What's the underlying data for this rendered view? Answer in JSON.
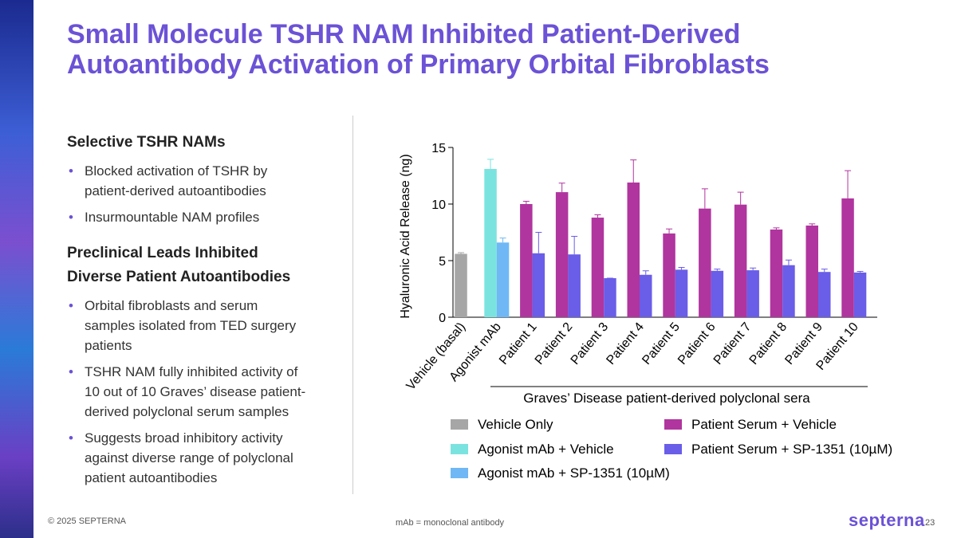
{
  "slide": {
    "title_lines": [
      "Small Molecule TSHR NAM Inhibited Patient-Derived",
      "Autoantibody Activation of Primary Orbital Fibroblasts"
    ],
    "sections": [
      {
        "heading": "Selective TSHR NAMs",
        "bullets": [
          "Blocked activation of TSHR by patient-derived autoantibodies",
          "Insurmountable NAM profiles"
        ]
      },
      {
        "heading": "Preclinical Leads Inhibited Diverse Patient Autoantibodies",
        "bullets": [
          "Orbital fibroblasts and serum samples isolated from TED surgery patients",
          "TSHR NAM fully inhibited activity of 10 out of 10 Graves’ disease patient-derived polyclonal serum samples",
          "Suggests broad inhibitory activity against diverse range of polyclonal patient autoantibodies"
        ]
      }
    ],
    "copyright": "© 2025 SEPTERNA",
    "footnote": "mAb = monoclonal antibody",
    "logo": "septerna",
    "page_number": "23"
  },
  "chart_data": {
    "type": "bar",
    "y_label": "Hyaluronic Acid Release (ng)",
    "group_label": "Graves’ Disease patient-derived polyclonal sera",
    "categories": [
      "Vehicle (basal)",
      "Agonist mAb",
      "Patient 1",
      "Patient 2",
      "Patient 3",
      "Patient 4",
      "Patient 5",
      "Patient 6",
      "Patient 7",
      "Patient 8",
      "Patient 9",
      "Patient 10"
    ],
    "series": [
      {
        "name": "Vehicle Only",
        "color": "#a6a6a6",
        "values": [
          5.6,
          null,
          null,
          null,
          null,
          null,
          null,
          null,
          null,
          null,
          null,
          null
        ],
        "errors": [
          0.1,
          null,
          null,
          null,
          null,
          null,
          null,
          null,
          null,
          null,
          null,
          null
        ]
      },
      {
        "name": "Agonist mAb + Vehicle",
        "color": "#7be3df",
        "values": [
          null,
          13.1,
          null,
          null,
          null,
          null,
          null,
          null,
          null,
          null,
          null,
          null
        ],
        "errors": [
          null,
          0.85,
          null,
          null,
          null,
          null,
          null,
          null,
          null,
          null,
          null,
          null
        ]
      },
      {
        "name": "Agonist mAb + SP-1351 (10µM)",
        "color": "#6fb8f5",
        "values": [
          null,
          6.6,
          null,
          null,
          null,
          null,
          null,
          null,
          null,
          null,
          null,
          null
        ],
        "errors": [
          null,
          0.4,
          null,
          null,
          null,
          null,
          null,
          null,
          null,
          null,
          null,
          null
        ]
      },
      {
        "name": "Patient Serum + Vehicle",
        "color": "#b0359e",
        "values": [
          null,
          null,
          10.0,
          11.05,
          8.8,
          11.9,
          7.4,
          9.6,
          9.95,
          7.75,
          8.1,
          10.5
        ],
        "errors": [
          null,
          null,
          0.25,
          0.8,
          0.25,
          2.0,
          0.4,
          1.75,
          1.1,
          0.15,
          0.15,
          2.45
        ]
      },
      {
        "name": "Patient Serum + SP-1351 (10µM)",
        "color": "#6a5de8",
        "values": [
          null,
          null,
          5.65,
          5.55,
          3.45,
          3.75,
          4.2,
          4.1,
          4.15,
          4.6,
          4.0,
          3.95
        ],
        "errors": [
          null,
          null,
          1.85,
          1.6,
          0,
          0.35,
          0.2,
          0.15,
          0.2,
          0.45,
          0.25,
          0.1
        ]
      }
    ],
    "ylim": [
      0,
      15
    ],
    "yticks": [
      0,
      5,
      10,
      15
    ]
  }
}
